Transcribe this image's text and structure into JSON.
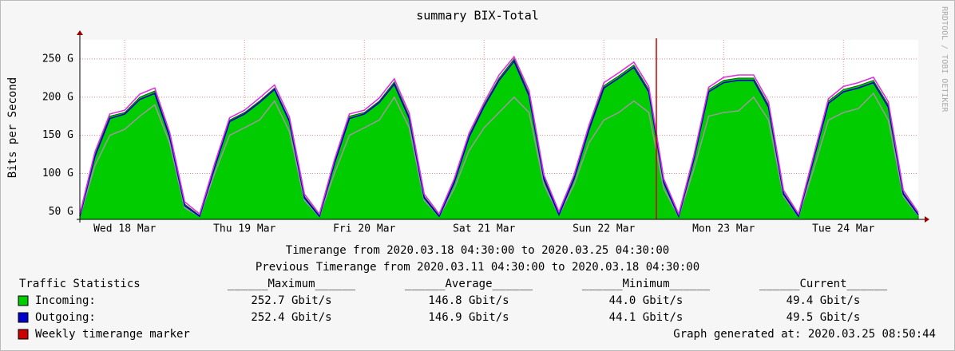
{
  "chart_data": {
    "type": "area",
    "title": "summary BIX-Total",
    "ylabel": "Bits per Second",
    "side_text": "RRDTOOL / TOBI OETIKER",
    "timerange": "Timerange from 2020.03.18 04:30:00 to 2020.03.25 04:30:00",
    "previous_timerange": "Previous Timerange from 2020.03.11 04:30:00 to 2020.03.18 04:30:00",
    "stats_title": "Traffic Statistics",
    "stats_headers": [
      "______Maximum______",
      "______Average______",
      "______Minimum______",
      "______Current______"
    ],
    "generated": "Graph generated at: 2020.03.25 08:50:44",
    "ylim": [
      40,
      275
    ],
    "yticks": [
      {
        "value": 50,
        "label": "50 G"
      },
      {
        "value": 100,
        "label": "100 G"
      },
      {
        "value": 150,
        "label": "150 G"
      },
      {
        "value": 200,
        "label": "200 G"
      },
      {
        "value": 250,
        "label": "250 G"
      }
    ],
    "grid": true,
    "categories": [
      null,
      null,
      null,
      "Wed 18 Mar",
      null,
      null,
      null,
      null,
      null,
      null,
      null,
      "Thu 19 Mar",
      null,
      null,
      null,
      null,
      null,
      null,
      null,
      "Fri 20 Mar",
      null,
      null,
      null,
      null,
      null,
      null,
      null,
      "Sat 21 Mar",
      null,
      null,
      null,
      null,
      null,
      null,
      null,
      "Sun 22 Mar",
      null,
      null,
      null,
      null,
      null,
      null,
      null,
      "Mon 23 Mar",
      null,
      null,
      null,
      null,
      null,
      null,
      null,
      "Tue 24 Mar",
      null,
      null,
      null,
      null,
      null
    ],
    "series": [
      {
        "name": "Incoming:",
        "color": "#00cc00",
        "fill": true,
        "stats": [
          "252.7 Gbit/s",
          "146.8 Gbit/s",
          "44.0 Gbit/s",
          "49.4 Gbit/s"
        ],
        "values": [
          45,
          125,
          175,
          180,
          200,
          208,
          150,
          60,
          45,
          110,
          170,
          180,
          195,
          212,
          170,
          70,
          45,
          115,
          175,
          180,
          195,
          220,
          175,
          70,
          45,
          90,
          150,
          190,
          225,
          250,
          205,
          95,
          48,
          95,
          160,
          215,
          228,
          242,
          210,
          90,
          45,
          120,
          210,
          222,
          225,
          225,
          190,
          75,
          45,
          120,
          195,
          210,
          215,
          222,
          190,
          75,
          47
        ]
      },
      {
        "color": "#999999",
        "values": [
          44,
          110,
          150,
          158,
          175,
          190,
          140,
          55,
          44,
          100,
          150,
          160,
          170,
          195,
          155,
          65,
          44,
          100,
          150,
          160,
          170,
          200,
          160,
          65,
          44,
          80,
          130,
          160,
          180,
          200,
          180,
          85,
          46,
          85,
          140,
          170,
          180,
          195,
          180,
          80,
          44,
          105,
          175,
          180,
          182,
          200,
          170,
          70,
          44,
          105,
          170,
          180,
          185,
          205,
          170,
          70,
          45
        ]
      },
      {
        "name": "Outgoing:",
        "color": "#0000cc",
        "stats": [
          "252.4 Gbit/s",
          "146.9 Gbit/s",
          "44.1 Gbit/s",
          "49.5 Gbit/s"
        ],
        "values": [
          44,
          122,
          172,
          178,
          197,
          205,
          148,
          58,
          44,
          108,
          168,
          178,
          193,
          210,
          168,
          68,
          44,
          113,
          172,
          178,
          193,
          217,
          172,
          68,
          44,
          88,
          148,
          188,
          222,
          247,
          202,
          92,
          46,
          93,
          157,
          212,
          225,
          239,
          207,
          88,
          44,
          118,
          207,
          219,
          222,
          222,
          187,
          73,
          44,
          118,
          192,
          207,
          212,
          219,
          187,
          73,
          46
        ]
      },
      {
        "color": "#dd33dd",
        "values": [
          47,
          128,
          178,
          183,
          204,
          212,
          154,
          63,
          47,
          113,
          173,
          183,
          199,
          216,
          174,
          73,
          47,
          118,
          178,
          183,
          199,
          224,
          179,
          73,
          47,
          93,
          153,
          193,
          229,
          253,
          209,
          98,
          50,
          98,
          163,
          219,
          232,
          246,
          214,
          93,
          47,
          123,
          213,
          226,
          229,
          229,
          194,
          78,
          47,
          123,
          198,
          214,
          219,
          226,
          194,
          78,
          49
        ]
      }
    ],
    "marker": {
      "name": "Weekly timerange marker",
      "color": "#cc0000"
    }
  }
}
